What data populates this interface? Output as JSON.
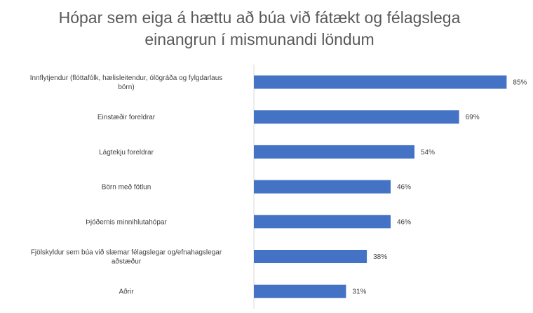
{
  "chart_data": {
    "type": "bar",
    "orientation": "horizontal",
    "title_lines": [
      "Hópar sem eiga á hættu að búa við fátækt og félagslega",
      "einangrun í mismunandi löndum"
    ],
    "categories": [
      [
        "Innflytjendur (flóttafólk, hælisleitendur, ólögráða og fylgdarlaus",
        "börn)"
      ],
      [
        "Einstæðir foreldrar"
      ],
      [
        "Lágtekju foreldrar"
      ],
      [
        "Börn með fötlun"
      ],
      [
        "Þjóðernis minnihlutahópar"
      ],
      [
        "Fjölskyldur sem búa við slæmar félagslegar og/efnahagslegar",
        "aðstæður"
      ],
      [
        "Aðrir"
      ]
    ],
    "values": [
      85,
      69,
      54,
      46,
      46,
      38,
      31
    ],
    "value_labels": [
      "85%",
      "69%",
      "54%",
      "46%",
      "46%",
      "38%",
      "31%"
    ],
    "value_unit": "%",
    "xlim": [
      0,
      100
    ],
    "bar_color": "#4472C4",
    "axis_color": "#D9D9D9",
    "grid": false,
    "legend": "none"
  }
}
